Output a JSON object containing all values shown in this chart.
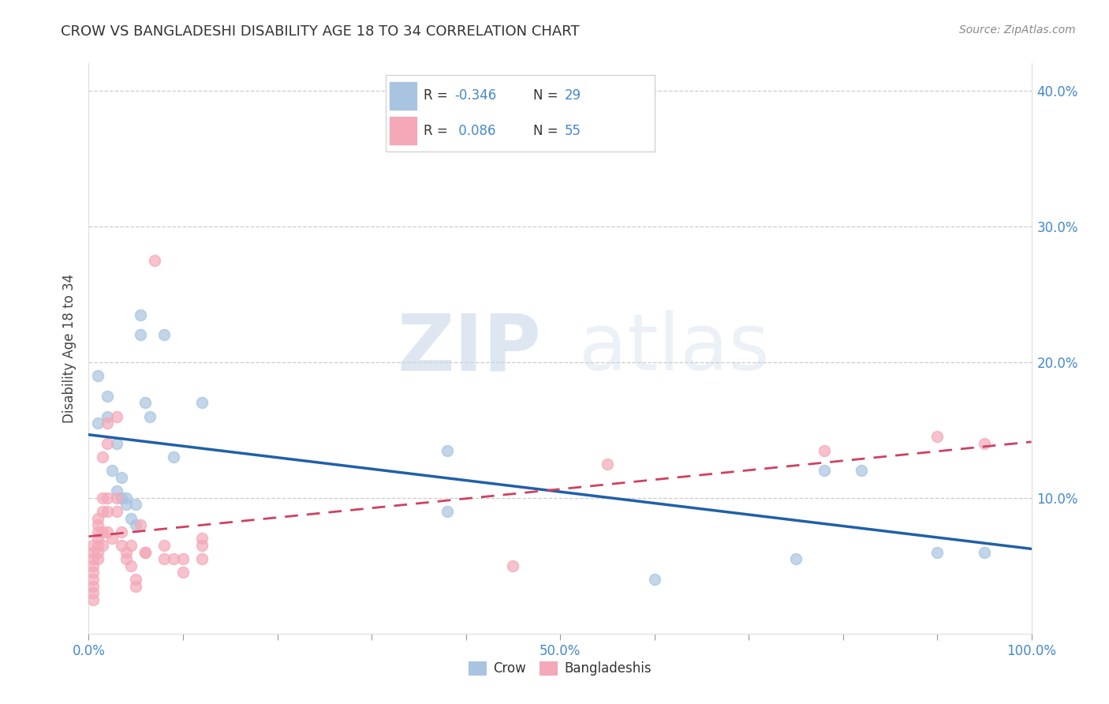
{
  "title": "CROW VS BANGLADESHI DISABILITY AGE 18 TO 34 CORRELATION CHART",
  "source": "Source: ZipAtlas.com",
  "ylabel": "Disability Age 18 to 34",
  "xlim": [
    0,
    1.0
  ],
  "ylim": [
    0,
    0.42
  ],
  "crow_color": "#a8c4e0",
  "bangladeshi_color": "#f4a8b8",
  "crow_line_color": "#2060a8",
  "bangladeshi_line_color": "#d04060",
  "legend_R_crow": "-0.346",
  "legend_N_crow": "29",
  "legend_R_bangladeshi": "0.086",
  "legend_N_bangladeshi": "55",
  "watermark_zip": "ZIP",
  "watermark_atlas": "atlas",
  "grid_color": "#cccccc",
  "crow_scatter": [
    [
      0.01,
      0.19
    ],
    [
      0.02,
      0.175
    ],
    [
      0.02,
      0.16
    ],
    [
      0.025,
      0.12
    ],
    [
      0.03,
      0.14
    ],
    [
      0.03,
      0.105
    ],
    [
      0.035,
      0.115
    ],
    [
      0.035,
      0.1
    ],
    [
      0.04,
      0.1
    ],
    [
      0.04,
      0.095
    ],
    [
      0.045,
      0.085
    ],
    [
      0.05,
      0.095
    ],
    [
      0.05,
      0.08
    ],
    [
      0.055,
      0.235
    ],
    [
      0.055,
      0.22
    ],
    [
      0.06,
      0.17
    ],
    [
      0.065,
      0.16
    ],
    [
      0.08,
      0.22
    ],
    [
      0.09,
      0.13
    ],
    [
      0.12,
      0.17
    ],
    [
      0.38,
      0.135
    ],
    [
      0.38,
      0.09
    ],
    [
      0.6,
      0.04
    ],
    [
      0.75,
      0.055
    ],
    [
      0.78,
      0.12
    ],
    [
      0.82,
      0.12
    ],
    [
      0.9,
      0.06
    ],
    [
      0.95,
      0.06
    ],
    [
      0.01,
      0.155
    ]
  ],
  "bangladeshi_scatter": [
    [
      0.005,
      0.065
    ],
    [
      0.005,
      0.06
    ],
    [
      0.005,
      0.055
    ],
    [
      0.005,
      0.05
    ],
    [
      0.005,
      0.045
    ],
    [
      0.005,
      0.04
    ],
    [
      0.005,
      0.035
    ],
    [
      0.005,
      0.03
    ],
    [
      0.005,
      0.025
    ],
    [
      0.01,
      0.085
    ],
    [
      0.01,
      0.08
    ],
    [
      0.01,
      0.075
    ],
    [
      0.01,
      0.07
    ],
    [
      0.01,
      0.065
    ],
    [
      0.01,
      0.06
    ],
    [
      0.01,
      0.055
    ],
    [
      0.015,
      0.13
    ],
    [
      0.015,
      0.1
    ],
    [
      0.015,
      0.09
    ],
    [
      0.015,
      0.075
    ],
    [
      0.015,
      0.065
    ],
    [
      0.02,
      0.155
    ],
    [
      0.02,
      0.14
    ],
    [
      0.02,
      0.1
    ],
    [
      0.02,
      0.09
    ],
    [
      0.02,
      0.075
    ],
    [
      0.025,
      0.07
    ],
    [
      0.03,
      0.16
    ],
    [
      0.03,
      0.1
    ],
    [
      0.03,
      0.09
    ],
    [
      0.035,
      0.075
    ],
    [
      0.035,
      0.065
    ],
    [
      0.04,
      0.06
    ],
    [
      0.04,
      0.055
    ],
    [
      0.045,
      0.065
    ],
    [
      0.045,
      0.05
    ],
    [
      0.05,
      0.04
    ],
    [
      0.05,
      0.035
    ],
    [
      0.055,
      0.08
    ],
    [
      0.06,
      0.06
    ],
    [
      0.06,
      0.06
    ],
    [
      0.07,
      0.275
    ],
    [
      0.08,
      0.065
    ],
    [
      0.08,
      0.055
    ],
    [
      0.09,
      0.055
    ],
    [
      0.1,
      0.055
    ],
    [
      0.1,
      0.045
    ],
    [
      0.12,
      0.07
    ],
    [
      0.12,
      0.065
    ],
    [
      0.12,
      0.055
    ],
    [
      0.45,
      0.05
    ],
    [
      0.55,
      0.125
    ],
    [
      0.78,
      0.135
    ],
    [
      0.9,
      0.145
    ],
    [
      0.95,
      0.14
    ]
  ]
}
